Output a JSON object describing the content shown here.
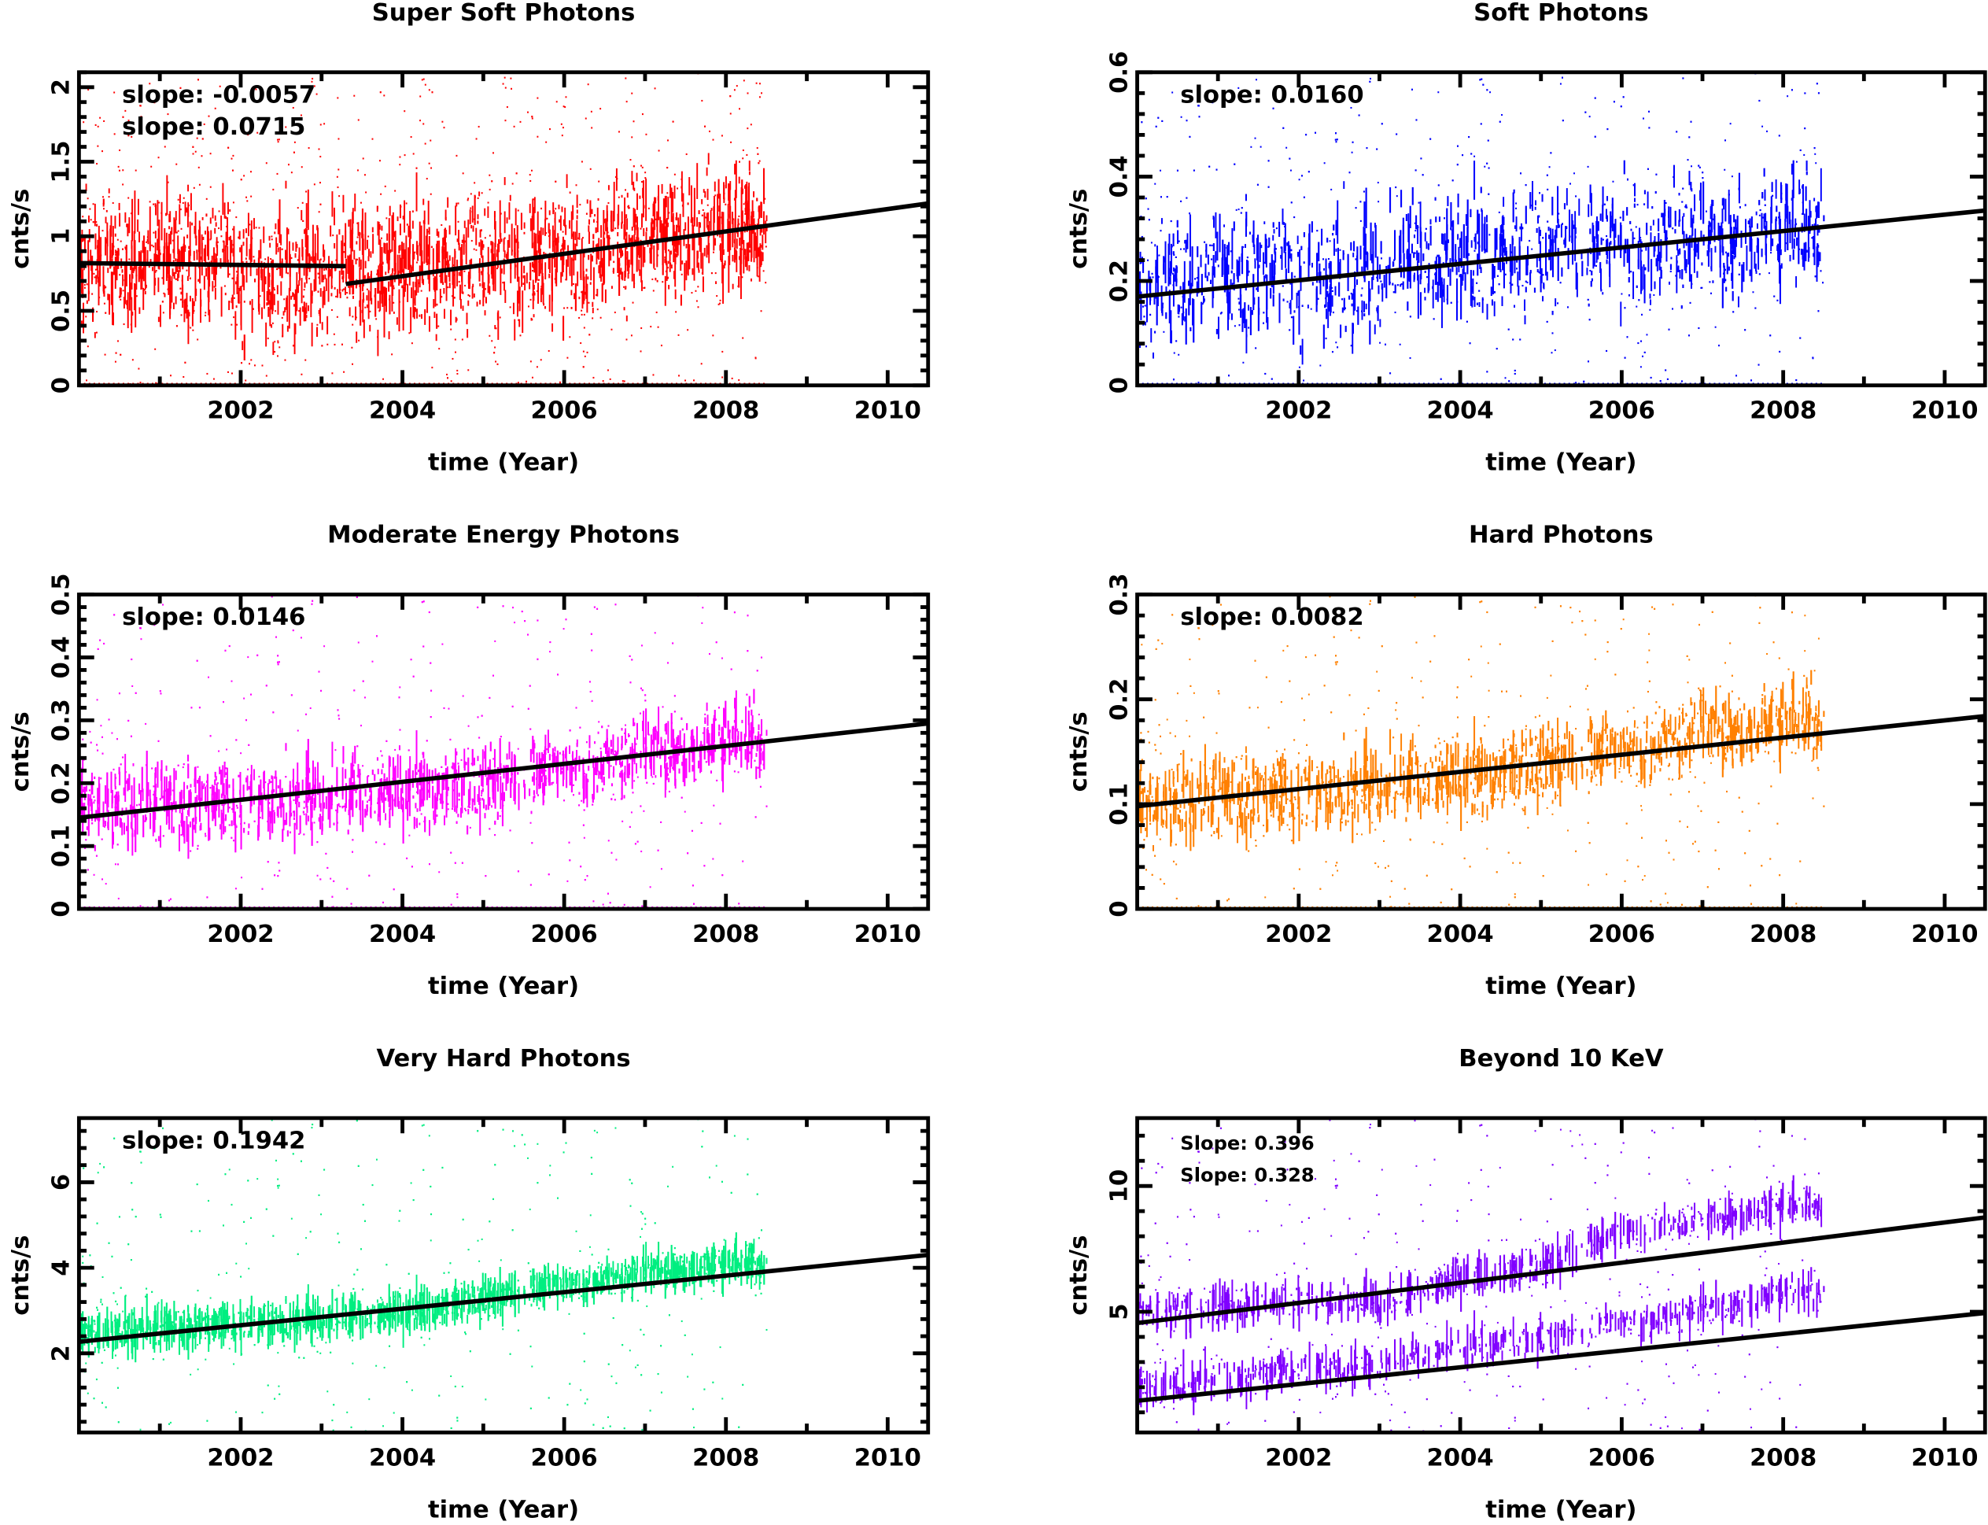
{
  "chart_data": [
    {
      "type": "scatter",
      "title": "Super Soft Photons",
      "xlabel": "time (Year)",
      "ylabel": "cnts/s",
      "color": "#ff0000",
      "xlim": [
        2000,
        2010.5
      ],
      "ylim": [
        0,
        2.1
      ],
      "xticks": [
        "2002",
        "2004",
        "2006",
        "2008",
        "2010"
      ],
      "yticks": [
        "0",
        "0.5",
        "1",
        "1.5",
        "2"
      ],
      "annotations": [
        "slope: -0.0057",
        "slope: 0.0715"
      ],
      "fit_lines": [
        {
          "x": [
            2000,
            2003.3
          ],
          "y": [
            0.82,
            0.8
          ]
        },
        {
          "x": [
            2003.3,
            2010.5
          ],
          "y": [
            0.68,
            1.22
          ]
        }
      ],
      "data_x_range": [
        2000,
        2008.5
      ],
      "approx_level": {
        "x": [
          2000,
          2001,
          2002,
          2003,
          2004,
          2005,
          2006,
          2007,
          2008
        ],
        "y": [
          0.85,
          0.85,
          0.8,
          0.75,
          0.8,
          0.85,
          0.85,
          1.0,
          1.05
        ]
      },
      "spread": 0.35
    },
    {
      "type": "scatter",
      "title": "Soft Photons",
      "xlabel": "time (Year)",
      "ylabel": "cnts/s",
      "color": "#0000ff",
      "xlim": [
        2000,
        2010.5
      ],
      "ylim": [
        0,
        0.6
      ],
      "xticks": [
        "2002",
        "2004",
        "2006",
        "2008",
        "2010"
      ],
      "yticks": [
        "0",
        "0.2",
        "0.4",
        "0.6"
      ],
      "annotations": [
        "slope: 0.0160"
      ],
      "fit_lines": [
        {
          "x": [
            2000,
            2010.5
          ],
          "y": [
            0.17,
            0.335
          ]
        }
      ],
      "data_x_range": [
        2000,
        2008.5
      ],
      "approx_level": {
        "x": [
          2000,
          2001,
          2002,
          2003,
          2004,
          2005,
          2006,
          2007,
          2008
        ],
        "y": [
          0.2,
          0.22,
          0.22,
          0.22,
          0.25,
          0.27,
          0.27,
          0.28,
          0.3
        ]
      },
      "spread": 0.1
    },
    {
      "type": "scatter",
      "title": "Moderate Energy Photons",
      "xlabel": "time (Year)",
      "ylabel": "cnts/s",
      "color": "#ff00ff",
      "xlim": [
        2000,
        2010.5
      ],
      "ylim": [
        0,
        0.5
      ],
      "xticks": [
        "2002",
        "2004",
        "2006",
        "2008",
        "2010"
      ],
      "yticks": [
        "0",
        "0.1",
        "0.2",
        "0.3",
        "0.4",
        "0.5"
      ],
      "annotations": [
        "slope: 0.0146"
      ],
      "fit_lines": [
        {
          "x": [
            2000,
            2010.5
          ],
          "y": [
            0.145,
            0.295
          ]
        }
      ],
      "data_x_range": [
        2000,
        2008.5
      ],
      "approx_level": {
        "x": [
          2000,
          2001,
          2002,
          2003,
          2004,
          2005,
          2006,
          2007,
          2008
        ],
        "y": [
          0.17,
          0.17,
          0.17,
          0.18,
          0.18,
          0.2,
          0.22,
          0.25,
          0.27
        ]
      },
      "spread": 0.05
    },
    {
      "type": "scatter",
      "title": "Hard Photons",
      "xlabel": "time (Year)",
      "ylabel": "cnts/s",
      "color": "#ff8000",
      "xlim": [
        2000,
        2010.5
      ],
      "ylim": [
        0,
        0.3
      ],
      "xticks": [
        "2002",
        "2004",
        "2006",
        "2008",
        "2010"
      ],
      "yticks": [
        "0",
        "0.1",
        "0.2",
        "0.3"
      ],
      "annotations": [
        "slope: 0.0082"
      ],
      "fit_lines": [
        {
          "x": [
            2000,
            2010.5
          ],
          "y": [
            0.098,
            0.184
          ]
        }
      ],
      "data_x_range": [
        2000,
        2008.5
      ],
      "approx_level": {
        "x": [
          2000,
          2001,
          2002,
          2003,
          2004,
          2005,
          2006,
          2007,
          2008
        ],
        "y": [
          0.1,
          0.11,
          0.11,
          0.12,
          0.12,
          0.14,
          0.15,
          0.17,
          0.18
        ]
      },
      "spread": 0.03
    },
    {
      "type": "scatter",
      "title": "Very Hard  Photons",
      "xlabel": "time (Year)",
      "ylabel": "cnts/s",
      "color": "#00ee80",
      "xlim": [
        2000,
        2010.5
      ],
      "ylim": [
        0.15,
        7.5
      ],
      "xticks": [
        "2002",
        "2004",
        "2006",
        "2008",
        "2010"
      ],
      "yticks": [
        "2",
        "4",
        "6"
      ],
      "annotations": [
        "slope: 0.1942"
      ],
      "fit_lines": [
        {
          "x": [
            2000,
            2010.5
          ],
          "y": [
            2.27,
            4.3
          ]
        }
      ],
      "data_x_range": [
        2000,
        2008.5
      ],
      "approx_level": {
        "x": [
          2000,
          2001,
          2002,
          2003,
          2004,
          2005,
          2006,
          2007,
          2008
        ],
        "y": [
          2.5,
          2.6,
          2.7,
          2.8,
          2.9,
          3.3,
          3.6,
          3.9,
          4.1
        ]
      },
      "spread": 0.3
    },
    {
      "type": "scatter",
      "title": "Beyond 10 KeV",
      "xlabel": "time (Year)",
      "ylabel": "cnts/s",
      "color": "#8000ff",
      "xlim": [
        2000,
        2010.5
      ],
      "ylim": [
        0.2,
        12.7
      ],
      "xticks": [
        "2002",
        "2004",
        "2006",
        "2008",
        "2010"
      ],
      "yticks": [
        "5",
        "10"
      ],
      "annotations": [
        "Slope: 0.396",
        "Slope: 0.328"
      ],
      "fit_lines": [
        {
          "x": [
            2000,
            2010.5
          ],
          "y": [
            4.55,
            8.75
          ]
        },
        {
          "x": [
            2000,
            2010.5
          ],
          "y": [
            1.46,
            4.95
          ]
        }
      ],
      "data_x_range": [
        2000,
        2008.5
      ],
      "approx_level": {
        "x": [
          2000,
          2001,
          2002,
          2003,
          2004,
          2005,
          2006,
          2007,
          2008
        ],
        "y": [
          5,
          5.2,
          5.5,
          5.3,
          6.3,
          6.8,
          8.2,
          8.7,
          9.2
        ]
      },
      "approx_level_2": {
        "x": [
          2000,
          2001,
          2002,
          2003,
          2004,
          2005,
          2006,
          2007,
          2008
        ],
        "y": [
          2,
          2.3,
          2.7,
          3,
          3.5,
          4,
          4.5,
          5,
          5.8
        ]
      },
      "spread": 0.5
    }
  ]
}
